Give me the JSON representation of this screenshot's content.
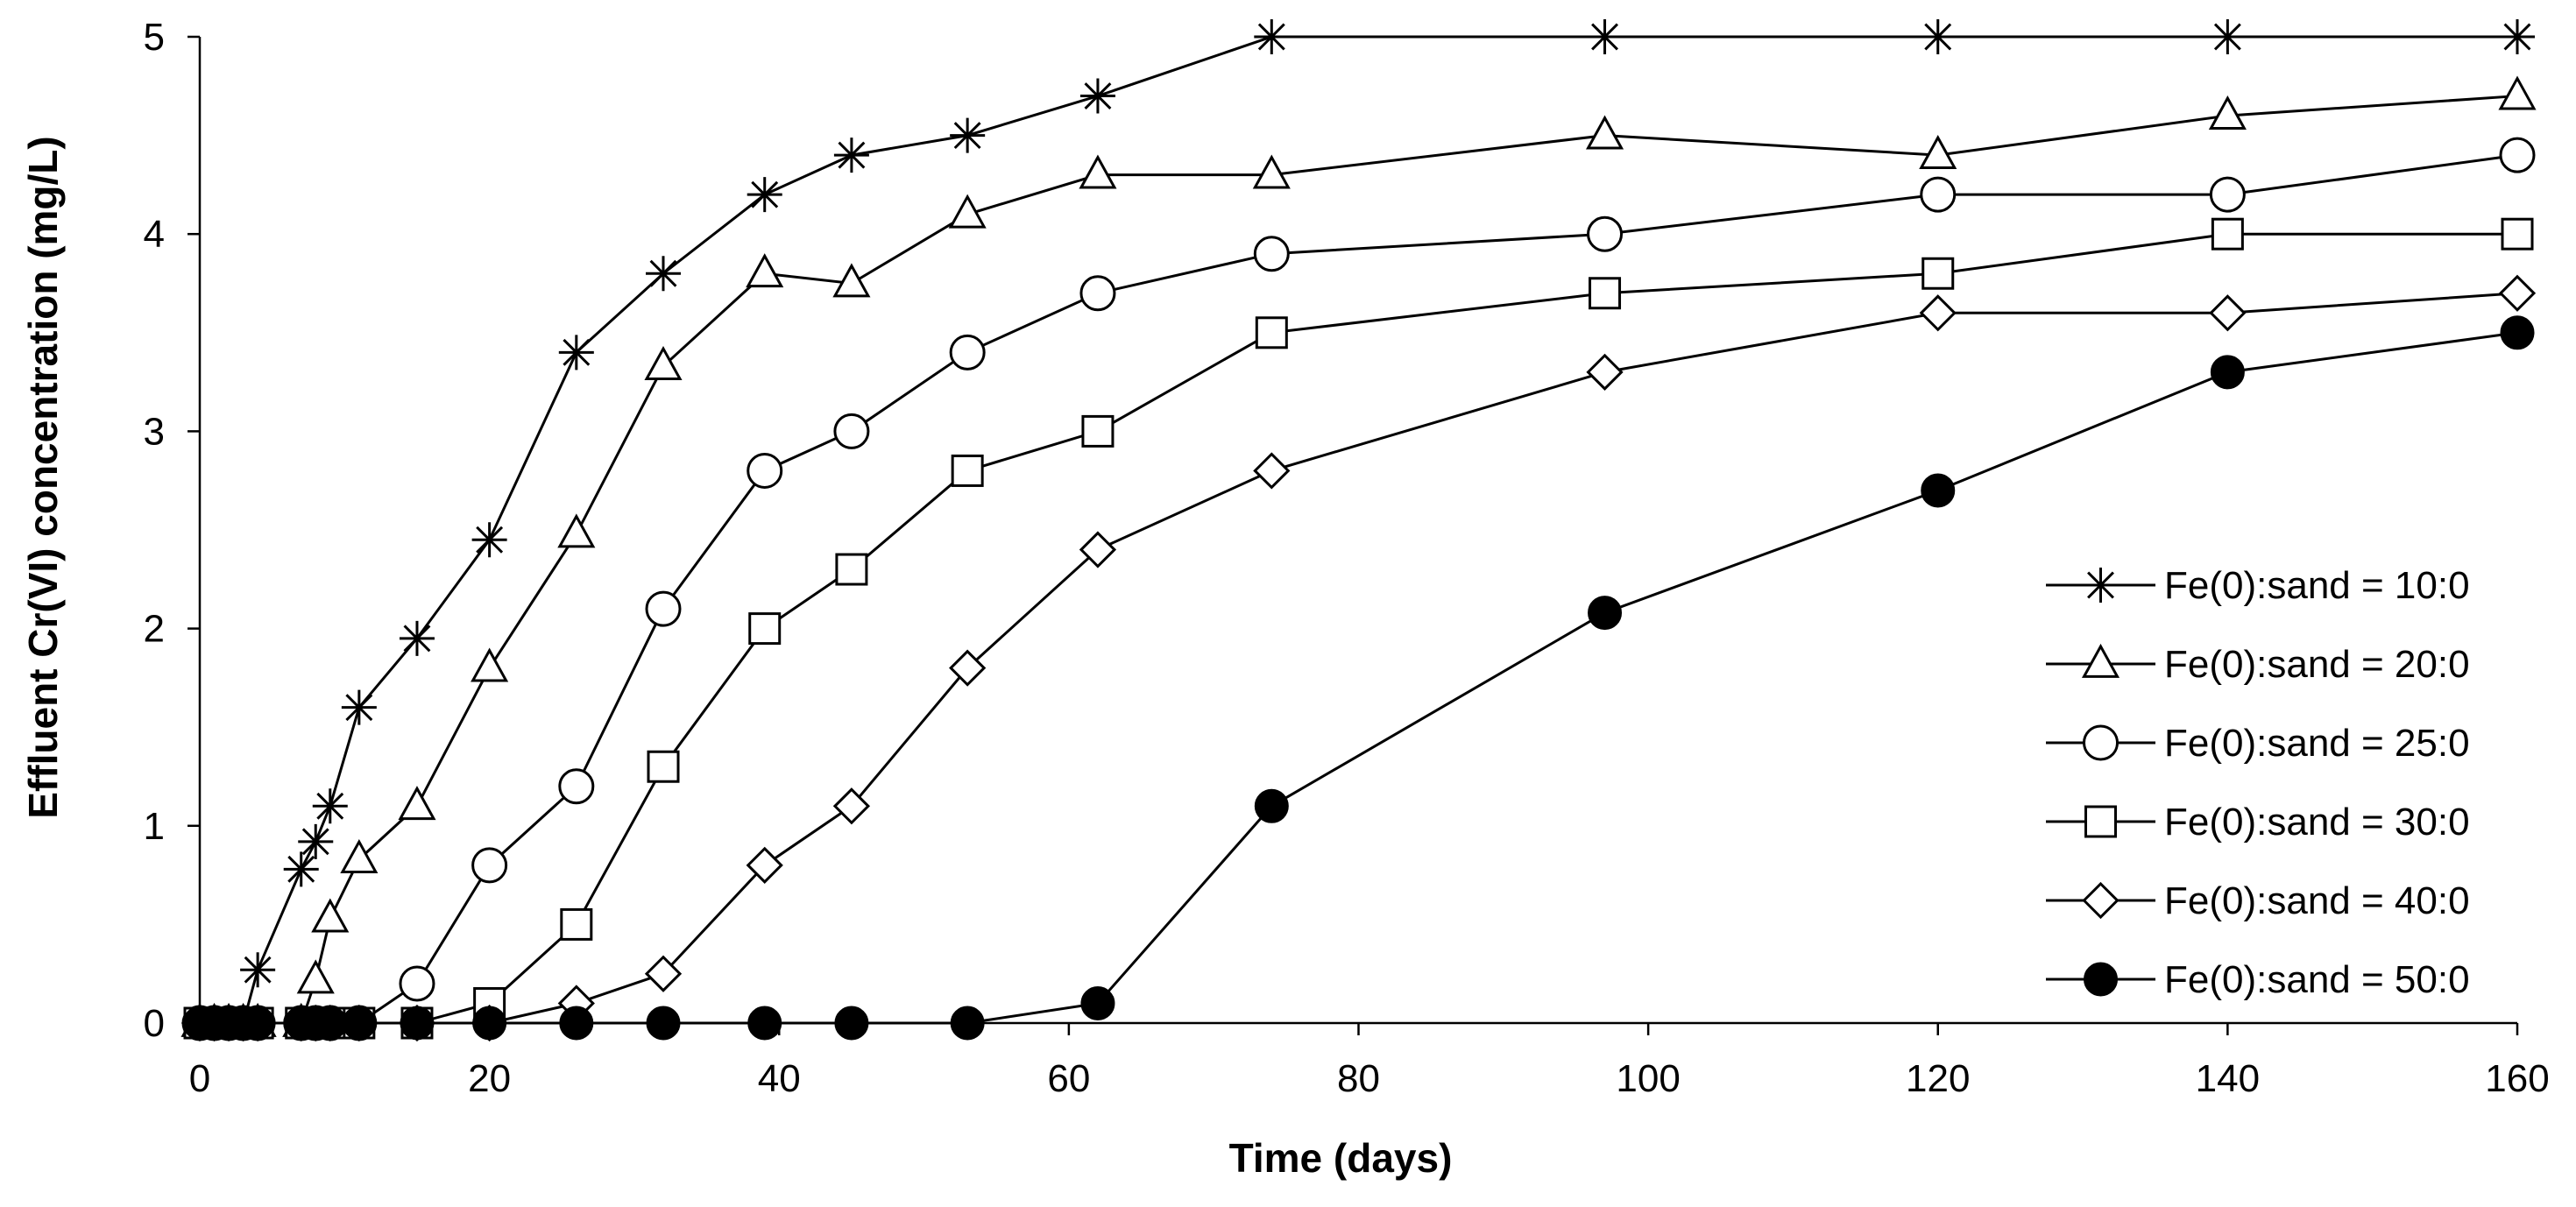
{
  "chart_data": {
    "type": "line",
    "title": "",
    "xlabel": "Time (days)",
    "ylabel": "Effluent Cr(VI) concentration (mg/L)",
    "xlim": [
      0,
      160
    ],
    "ylim": [
      0,
      5
    ],
    "xticks": [
      0,
      20,
      40,
      60,
      80,
      100,
      120,
      140,
      160
    ],
    "yticks": [
      0,
      1,
      2,
      3,
      4,
      5
    ],
    "grid": false,
    "legend_position": "right",
    "colors": {
      "line": "#000000",
      "background": "#ffffff"
    },
    "series": [
      {
        "name": "Fe(0):sand = 10:0",
        "marker": "asterisk",
        "x": [
          0,
          1,
          2,
          3,
          4,
          7,
          8,
          9,
          11,
          15,
          20,
          26,
          32,
          39,
          45,
          53,
          62,
          74,
          97,
          120,
          140,
          160
        ],
        "y": [
          0,
          0,
          0,
          0,
          0.27,
          0.78,
          0.92,
          1.1,
          1.6,
          1.95,
          2.45,
          3.4,
          3.8,
          4.2,
          4.4,
          4.5,
          4.7,
          5.0,
          5.0,
          5.0,
          5.0,
          5.0
        ]
      },
      {
        "name": "Fe(0):sand = 20:0",
        "marker": "triangle",
        "x": [
          0,
          1,
          2,
          3,
          4,
          7,
          8,
          9,
          11,
          15,
          20,
          26,
          32,
          39,
          45,
          53,
          62,
          74,
          97,
          120,
          140,
          160
        ],
        "y": [
          0,
          0,
          0,
          0,
          0,
          0,
          0.22,
          0.53,
          0.83,
          1.1,
          1.8,
          2.48,
          3.33,
          3.8,
          3.75,
          4.1,
          4.3,
          4.3,
          4.5,
          4.4,
          4.6,
          4.7
        ]
      },
      {
        "name": "Fe(0):sand = 25:0",
        "marker": "circle-open",
        "x": [
          0,
          1,
          2,
          3,
          4,
          7,
          8,
          9,
          11,
          15,
          20,
          26,
          32,
          39,
          45,
          53,
          62,
          74,
          97,
          120,
          140,
          160
        ],
        "y": [
          0,
          0,
          0,
          0,
          0,
          0,
          0,
          0,
          0,
          0.2,
          0.8,
          1.2,
          2.1,
          2.8,
          3.0,
          3.4,
          3.7,
          3.9,
          4.0,
          4.2,
          4.2,
          4.4
        ]
      },
      {
        "name": "Fe(0):sand = 30:0",
        "marker": "square",
        "x": [
          0,
          1,
          2,
          3,
          4,
          7,
          8,
          9,
          11,
          15,
          20,
          26,
          32,
          39,
          45,
          53,
          62,
          74,
          97,
          120,
          140,
          160
        ],
        "y": [
          0,
          0,
          0,
          0,
          0,
          0,
          0,
          0,
          0,
          0,
          0.1,
          0.5,
          1.3,
          2.0,
          2.3,
          2.8,
          3.0,
          3.5,
          3.7,
          3.8,
          4.0,
          4.0
        ]
      },
      {
        "name": "Fe(0):sand = 40:0",
        "marker": "diamond",
        "x": [
          0,
          1,
          2,
          3,
          4,
          7,
          8,
          9,
          11,
          15,
          20,
          26,
          32,
          39,
          45,
          53,
          62,
          74,
          97,
          120,
          140,
          160
        ],
        "y": [
          0,
          0,
          0,
          0,
          0,
          0,
          0,
          0,
          0,
          0,
          0,
          0.1,
          0.25,
          0.8,
          1.1,
          1.8,
          2.4,
          2.8,
          3.3,
          3.6,
          3.6,
          3.7
        ]
      },
      {
        "name": "Fe(0):sand = 50:0",
        "marker": "circle-filled",
        "x": [
          0,
          1,
          2,
          3,
          4,
          7,
          8,
          9,
          11,
          15,
          20,
          26,
          32,
          39,
          45,
          53,
          62,
          74,
          97,
          120,
          140,
          160
        ],
        "y": [
          0,
          0,
          0,
          0,
          0,
          0,
          0,
          0,
          0,
          0,
          0,
          0,
          0,
          0,
          0,
          0,
          0.1,
          1.1,
          2.08,
          2.7,
          3.3,
          3.5
        ]
      }
    ]
  }
}
